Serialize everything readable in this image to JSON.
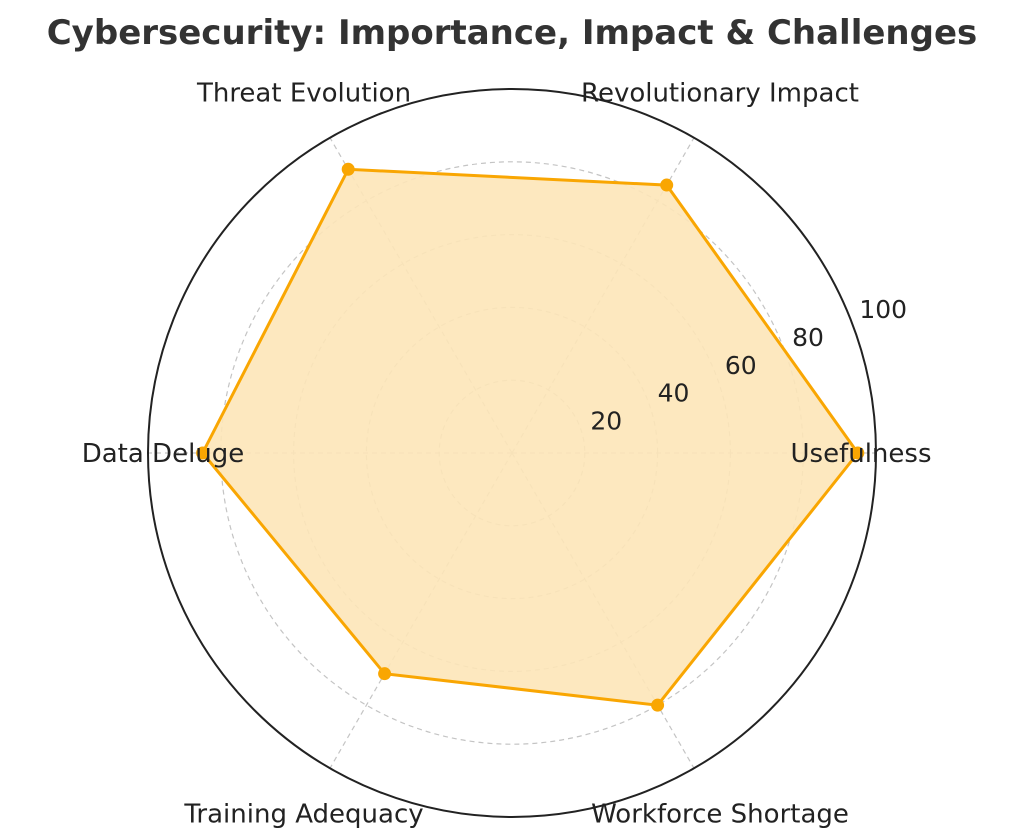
{
  "chart_data": {
    "type": "radar",
    "title": "Cybersecurity: Importance, Impact & Challenges",
    "categories": [
      "Usefulness",
      "Revolutionary Impact",
      "Threat Evolution",
      "Data Deluge",
      "Training Adequacy",
      "Workforce Shortage"
    ],
    "series": [
      {
        "values": [
          95,
          85,
          90,
          85,
          70,
          80
        ]
      }
    ],
    "rlim": [
      0,
      100
    ],
    "rticks": [
      20,
      40,
      60,
      80,
      100
    ],
    "rtick_labels": [
      "20",
      "40",
      "60",
      "80",
      "100"
    ],
    "grid": true,
    "colors": {
      "line": "#F9A602",
      "fill": "#FDE5B8",
      "grid": "#c4c4c4",
      "frame": "#222222",
      "text": "#222222",
      "title": "#333333"
    }
  }
}
